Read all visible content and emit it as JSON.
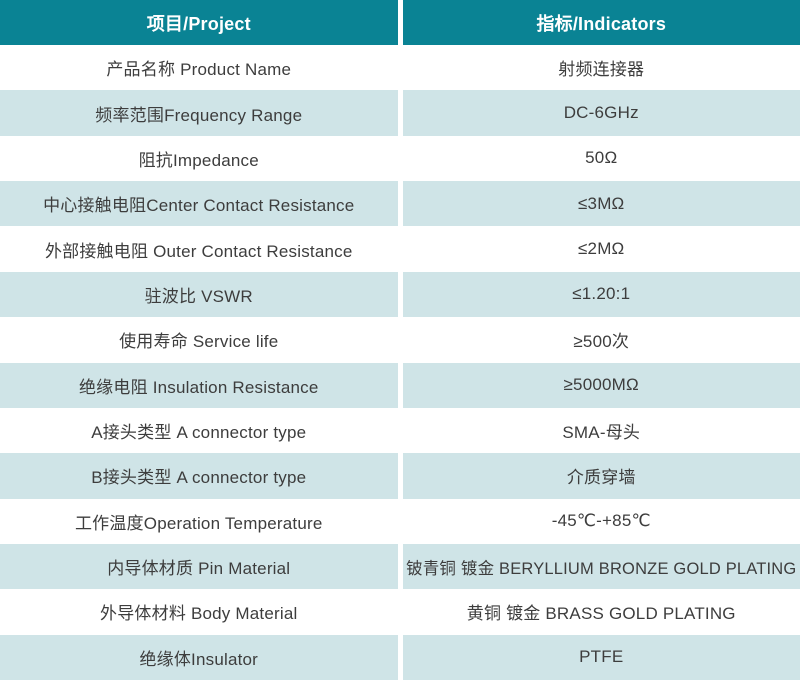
{
  "table": {
    "colors": {
      "header_bg": "#0a8394",
      "header_text": "#ffffff",
      "row_tint_bg": "#cfe4e7",
      "row_white_bg": "#ffffff",
      "row_text": "#3d3d3d"
    },
    "header": {
      "project": "项目/Project",
      "indicator": "指标/Indicators"
    },
    "rows": [
      {
        "project": "产品名称 Product Name",
        "indicator": "射频连接器"
      },
      {
        "project": "频率范围Frequency Range",
        "indicator": "DC-6GHz"
      },
      {
        "project": "阻抗Impedance",
        "indicator": "50Ω"
      },
      {
        "project": "中心接触电阻Center Contact Resistance",
        "indicator": "≤3MΩ"
      },
      {
        "project": "外部接触电阻 Outer Contact Resistance",
        "indicator": "≤2MΩ"
      },
      {
        "project": "驻波比 VSWR",
        "indicator": "≤1.20:1"
      },
      {
        "project": "使用寿命 Service life",
        "indicator": "≥500次"
      },
      {
        "project": "绝缘电阻 Insulation Resistance",
        "indicator": "≥5000MΩ"
      },
      {
        "project": "A接头类型 A connector type",
        "indicator": "SMA-母头"
      },
      {
        "project": "B接头类型 A connector type",
        "indicator": "介质穿墙"
      },
      {
        "project": "工作温度Operation Temperature",
        "indicator": "-45℃-+85℃"
      },
      {
        "project": "内导体材质 Pin Material",
        "indicator": "铍青铜 镀金 BERYLLIUM BRONZE GOLD PLATING"
      },
      {
        "project": "外导体材料 Body Material",
        "indicator": "黄铜 镀金 BRASS GOLD PLATING"
      },
      {
        "project": "绝缘体Insulator",
        "indicator": "PTFE"
      }
    ]
  }
}
